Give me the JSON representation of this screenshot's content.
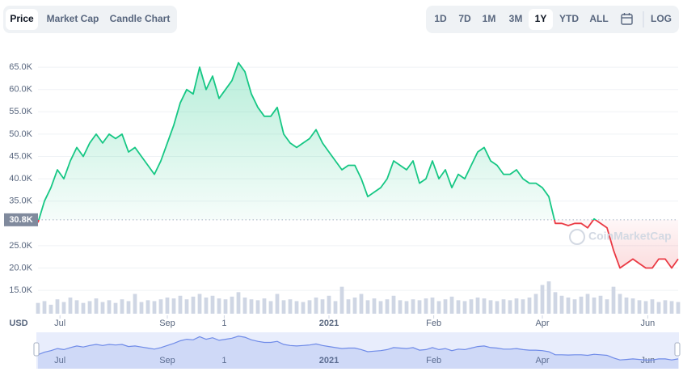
{
  "toolbar": {
    "tabs": [
      "Price",
      "Market Cap",
      "Candle Chart"
    ],
    "active_tab": 0,
    "ranges": [
      "1D",
      "7D",
      "1M",
      "3M",
      "1Y",
      "YTD",
      "ALL"
    ],
    "active_range": 4,
    "log": "LOG"
  },
  "chart_data": {
    "type": "line",
    "currency": "USD",
    "watermark": "CoinMarketCap",
    "baseline": {
      "value": 30800,
      "label": "30.8K"
    },
    "up_color": "#16c784",
    "down_color": "#ea3943",
    "nav_color": "#6f8be8",
    "xlim": [
      0,
      99
    ],
    "xticks": [
      {
        "value": 3.4,
        "label": "Jul"
      },
      {
        "value": 20,
        "label": "Sep"
      },
      {
        "value": 28.8,
        "label": "1"
      },
      {
        "value": 45,
        "label": "2021"
      },
      {
        "value": 61.2,
        "label": "Feb"
      },
      {
        "value": 78,
        "label": "Apr"
      },
      {
        "value": 94.3,
        "label": "Jun"
      }
    ],
    "ylim": [
      9400,
      71900
    ],
    "yticks": [
      {
        "value": 15000,
        "label": "15.0K"
      },
      {
        "value": 20000,
        "label": "20.0K"
      },
      {
        "value": 25000,
        "label": "25.0K"
      },
      {
        "value": 35000,
        "label": "35.0K"
      },
      {
        "value": 40000,
        "label": "40.0K"
      },
      {
        "value": 45000,
        "label": "45.0K"
      },
      {
        "value": 50000,
        "label": "50.0K"
      },
      {
        "value": 55000,
        "label": "55.0K"
      },
      {
        "value": 60000,
        "label": "60.0K"
      },
      {
        "value": 65000,
        "label": "65.0K"
      }
    ],
    "grid": true,
    "series": [
      {
        "values": [
          30200,
          35000,
          38000,
          42000,
          40000,
          44000,
          47000,
          45000,
          48000,
          50000,
          48000,
          50000,
          49000,
          50000,
          46000,
          47000,
          45000,
          43000,
          41000,
          44000,
          48000,
          52000,
          57000,
          60000,
          59000,
          65000,
          60000,
          63000,
          58000,
          60000,
          62000,
          66000,
          64000,
          59000,
          56000,
          54000,
          54000,
          56000,
          50000,
          48000,
          47000,
          48000,
          49000,
          51000,
          48000,
          46000,
          44000,
          42000,
          43000,
          43000,
          40000,
          36000,
          37000,
          38000,
          40000,
          44000,
          43000,
          42000,
          44000,
          39000,
          40000,
          44000,
          40000,
          42000,
          38000,
          41000,
          40000,
          43000,
          46000,
          47000,
          44000,
          43000,
          41000,
          41000,
          42000,
          40000,
          39000,
          39000,
          38000,
          36000,
          30000,
          30000,
          29500,
          30000,
          30000,
          29000,
          31000,
          30000,
          29000,
          24000,
          20000,
          21000,
          22000,
          21000,
          20000,
          20000,
          22000,
          22000,
          20000,
          22000
        ]
      }
    ],
    "volume": [
      12,
      14,
      10,
      16,
      13,
      18,
      15,
      12,
      14,
      17,
      13,
      15,
      12,
      16,
      14,
      22,
      13,
      15,
      14,
      16,
      18,
      17,
      20,
      16,
      19,
      22,
      18,
      20,
      17,
      16,
      19,
      24,
      18,
      16,
      15,
      17,
      14,
      22,
      15,
      16,
      14,
      13,
      15,
      18,
      16,
      20,
      14,
      30,
      16,
      18,
      22,
      15,
      17,
      14,
      16,
      20,
      15,
      14,
      16,
      15,
      17,
      18,
      14,
      16,
      19,
      15,
      14,
      16,
      18,
      17,
      15,
      14,
      16,
      15,
      17,
      16,
      18,
      22,
      32,
      36,
      24,
      20,
      18,
      16,
      19,
      22,
      18,
      20,
      16,
      30,
      22,
      18,
      17,
      15,
      14,
      16,
      13,
      15,
      14,
      13
    ]
  }
}
